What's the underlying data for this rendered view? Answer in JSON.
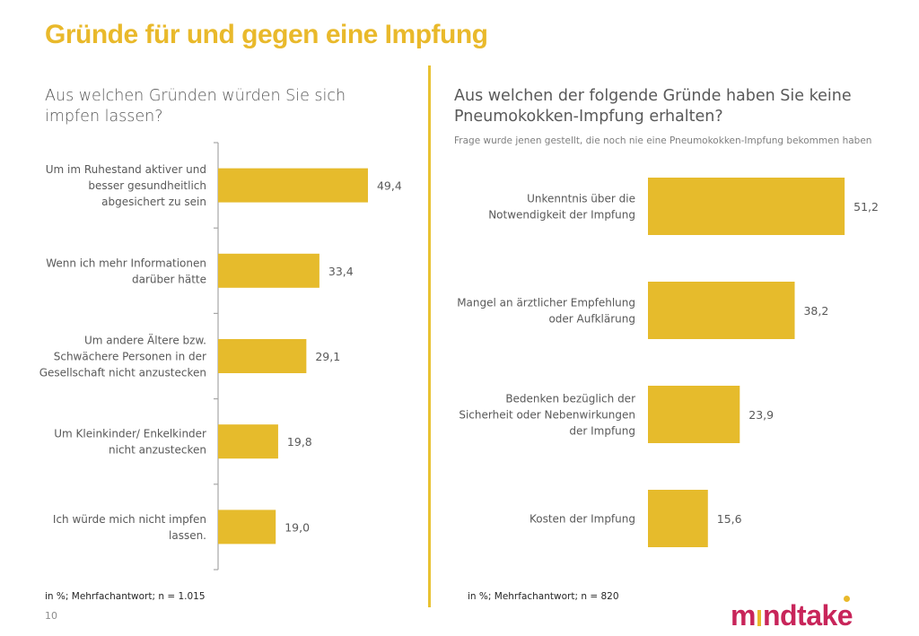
{
  "page": {
    "title": "Gründe für und gegen eine Impfung",
    "page_number": "10",
    "accent_color": "#e9b92b",
    "bar_color": "#e6bb2c",
    "logo": {
      "text_before": "m",
      "text_after": "ndtake",
      "brand_color": "#c8255a",
      "accent_color": "#e9b92b"
    }
  },
  "left": {
    "question": "Aus welchen Gründen würden Sie sich impfen lassen?",
    "note": "in %; Mehrfachantwort;  n = 1.015"
  },
  "right": {
    "question": "Aus welchen der folgende Gründe haben Sie keine Pneumokokken-Impfung erhalten?",
    "subtitle": "Frage wurde jenen gestellt, die noch nie eine Pneumokokken-Impfung bekommen haben",
    "note": "in %; Mehrfachantwort;  n = 820"
  },
  "chart_data": [
    {
      "type": "bar",
      "orientation": "horizontal",
      "title": "Aus welchen Gründen würden Sie sich impfen lassen?",
      "categories": [
        [
          "Um im Ruhestand aktiver und",
          "besser gesundheitlich",
          "abgesichert zu sein"
        ],
        [
          "Wenn ich mehr Informationen",
          "darüber hätte"
        ],
        [
          "Um andere Ältere bzw.",
          "Schwächere Personen in der",
          "Gesellschaft nicht anzustecken"
        ],
        [
          "Um Kleinkinder/ Enkelkinder",
          "nicht anzustecken"
        ],
        [
          "Ich würde mich nicht impfen",
          "lassen."
        ]
      ],
      "values": [
        49.4,
        33.4,
        29.1,
        19.8,
        19.0
      ],
      "value_labels": [
        "49,4",
        "33,4",
        "29,1",
        "19,8",
        "19,0"
      ],
      "xlabel": "",
      "ylabel": "",
      "unit": "%",
      "xlim": [
        0,
        60
      ],
      "grid": false,
      "axis_line": true
    },
    {
      "type": "bar",
      "orientation": "horizontal",
      "title": "Aus welchen der folgende Gründe haben Sie keine Pneumokokken-Impfung erhalten?",
      "categories": [
        [
          "Unkenntnis über die",
          "Notwendigkeit der Impfung"
        ],
        [
          "Mangel an ärztlicher Empfehlung",
          "oder Aufklärung"
        ],
        [
          "Bedenken bezüglich der",
          "Sicherheit oder Nebenwirkungen",
          "der Impfung"
        ],
        [
          "Kosten der Impfung"
        ]
      ],
      "values": [
        51.2,
        38.2,
        23.9,
        15.6
      ],
      "value_labels": [
        "51,2",
        "38,2",
        "23,9",
        "15,6"
      ],
      "xlabel": "",
      "ylabel": "",
      "unit": "%",
      "xlim": [
        0,
        60
      ],
      "grid": false,
      "axis_line": false
    }
  ]
}
